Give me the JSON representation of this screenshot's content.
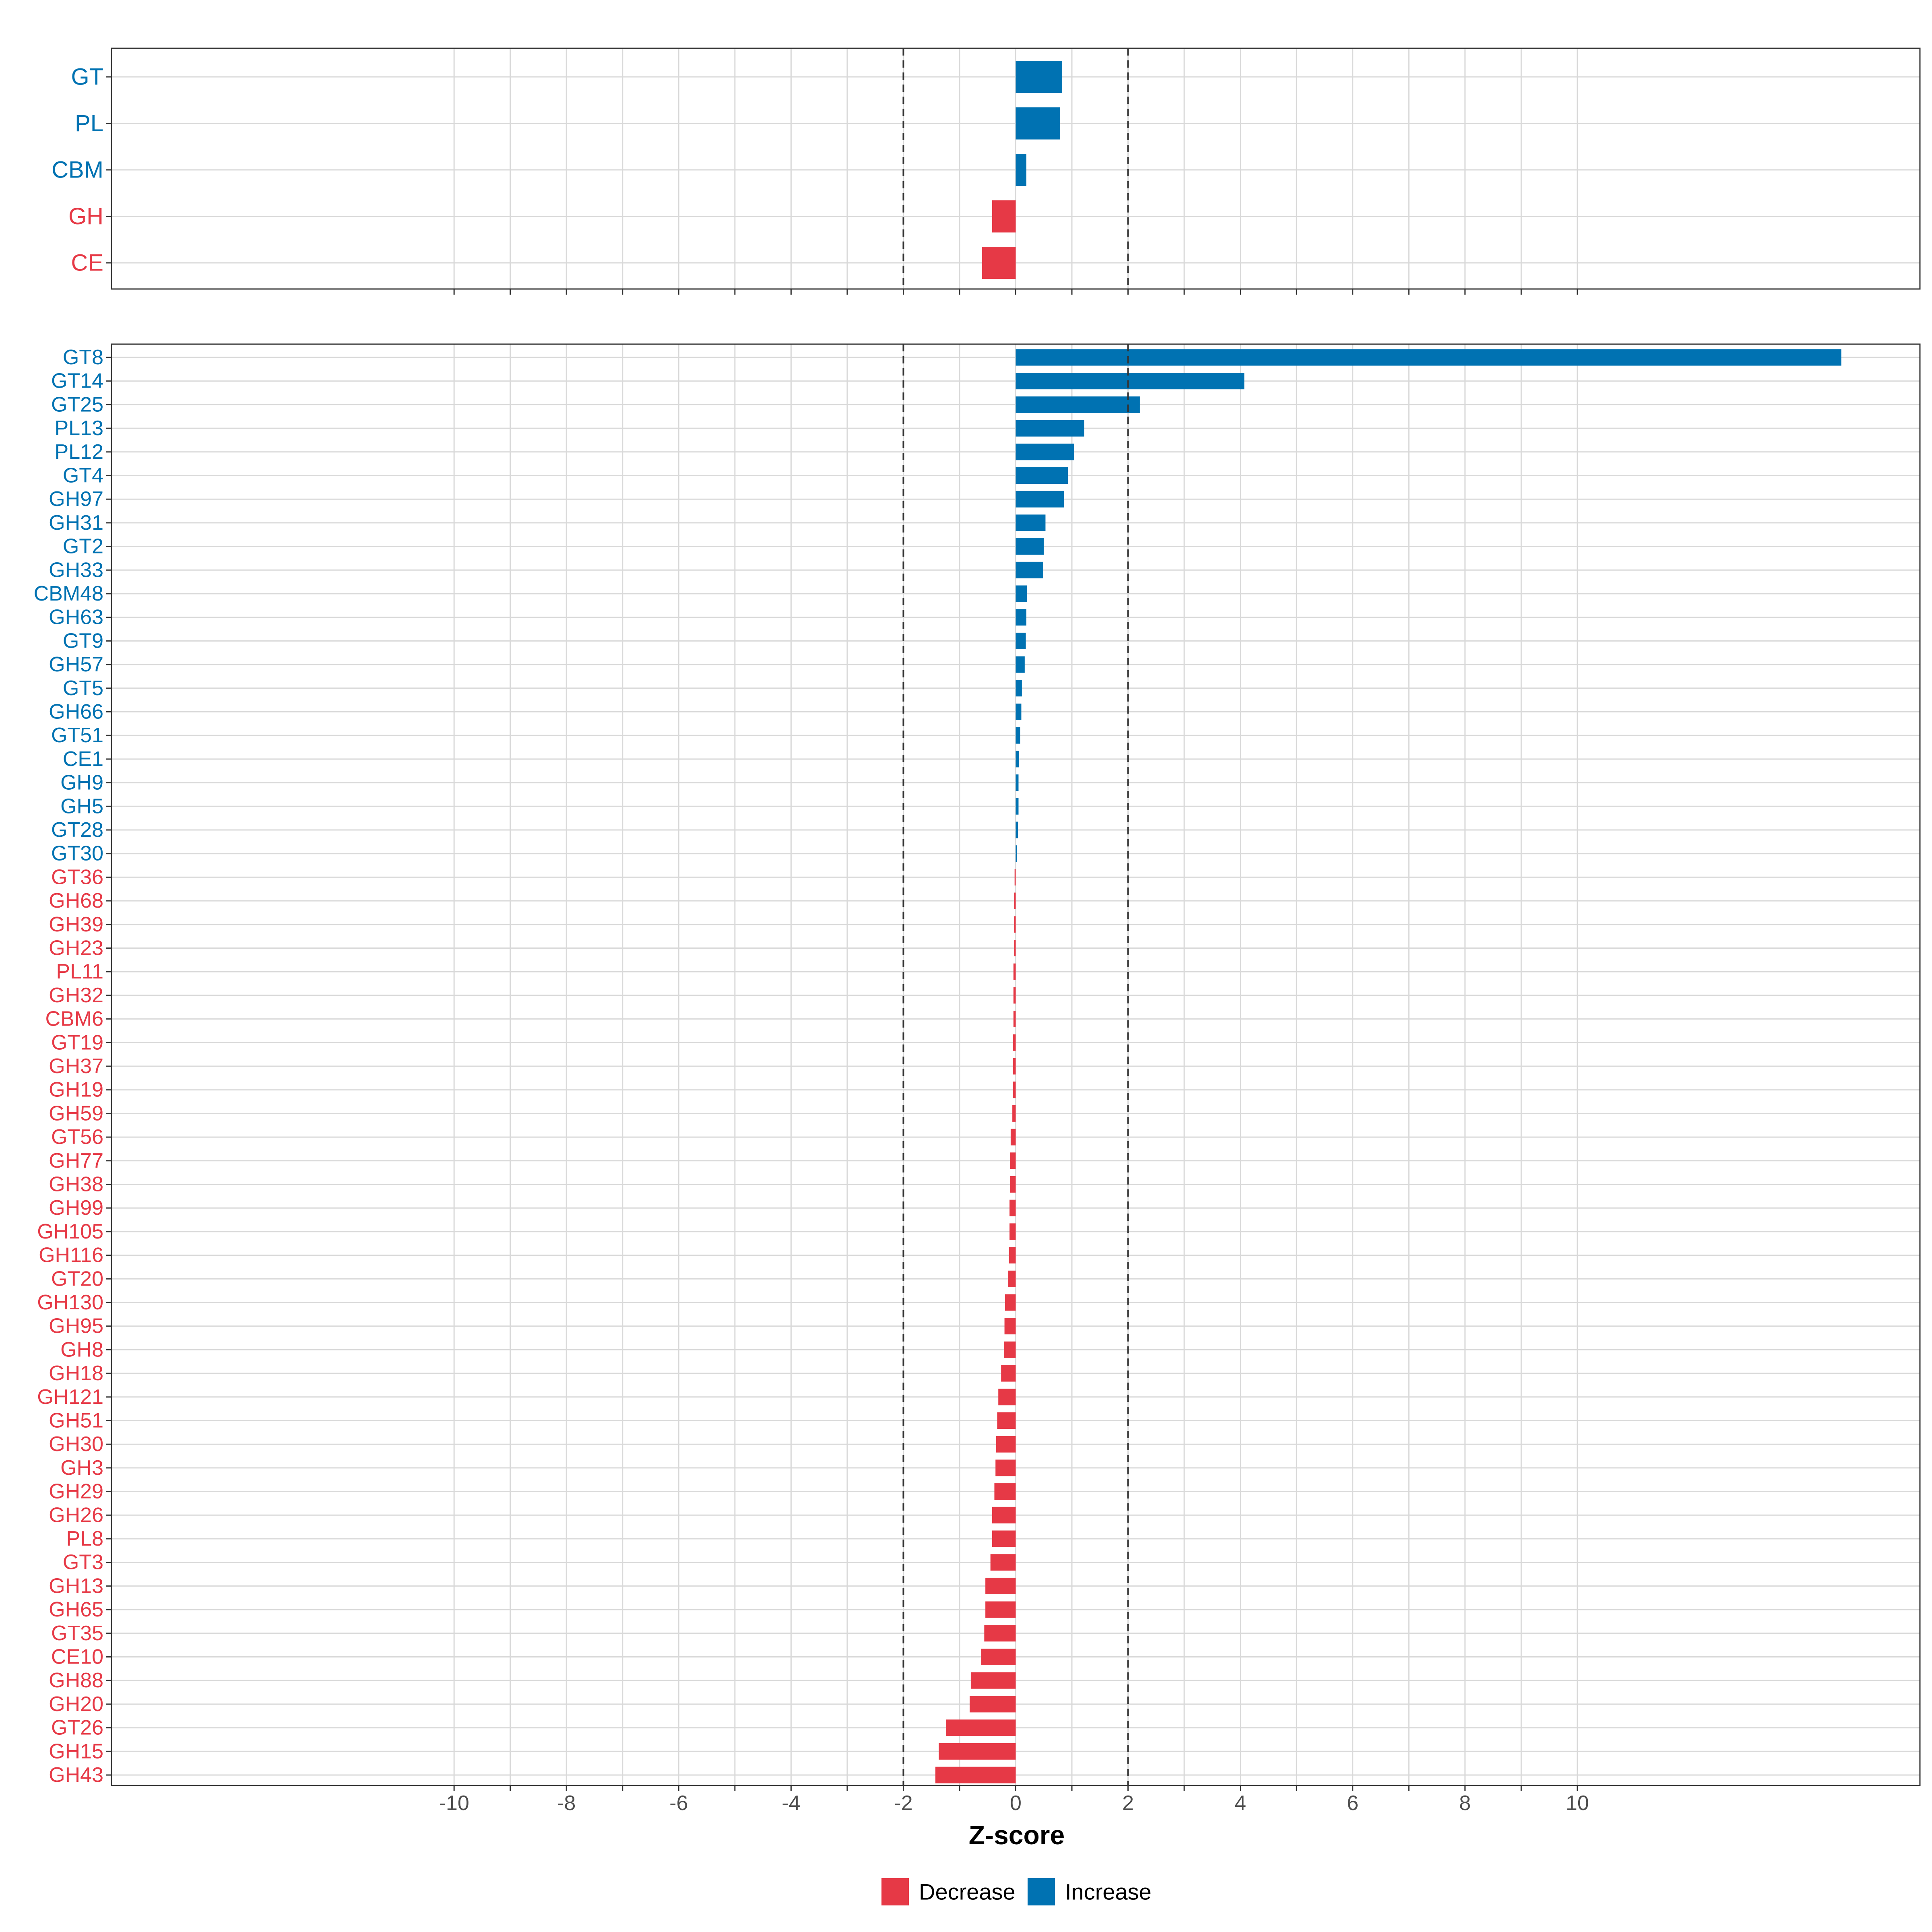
{
  "colors": {
    "decrease": "#E63946",
    "increase": "#0072B2",
    "grid": "#D9D9D9",
    "panel_border": "#333333",
    "threshold": "#333333",
    "axis_text": "#4D4D4D"
  },
  "chart_data": [
    {
      "type": "bar",
      "orientation": "horizontal",
      "panel": "top",
      "categories": [
        "GT",
        "PL",
        "CBM",
        "GH",
        "CE"
      ],
      "values": [
        0.82,
        0.79,
        0.19,
        -0.42,
        -0.6
      ],
      "xlim": [
        -16.1,
        16.1
      ],
      "threshold_lines": [
        -2,
        2
      ],
      "grid": true
    },
    {
      "type": "bar",
      "orientation": "horizontal",
      "panel": "bottom",
      "categories": [
        "GT8",
        "GT14",
        "GT25",
        "PL13",
        "PL12",
        "GT4",
        "GH97",
        "GH31",
        "GT2",
        "GH33",
        "CBM48",
        "GH63",
        "GT9",
        "GH57",
        "GT5",
        "GH66",
        "GT51",
        "CE1",
        "GH9",
        "GH5",
        "GT28",
        "GT30",
        "GT36",
        "GH68",
        "GH39",
        "GH23",
        "PL11",
        "GH32",
        "CBM6",
        "GT19",
        "GH37",
        "GH19",
        "GH59",
        "GT56",
        "GH77",
        "GH38",
        "GH99",
        "GH105",
        "GH116",
        "GT20",
        "GH130",
        "GH95",
        "GH8",
        "GH18",
        "GH121",
        "GH51",
        "GH30",
        "GH3",
        "GH29",
        "GH26",
        "PL8",
        "GT3",
        "GH13",
        "GH65",
        "GT35",
        "CE10",
        "GH88",
        "GH20",
        "GT26",
        "GH15",
        "GH43"
      ],
      "values": [
        14.7,
        4.07,
        2.21,
        1.22,
        1.04,
        0.93,
        0.86,
        0.53,
        0.5,
        0.49,
        0.2,
        0.19,
        0.18,
        0.16,
        0.11,
        0.1,
        0.08,
        0.06,
        0.05,
        0.05,
        0.04,
        0.02,
        -0.02,
        -0.03,
        -0.03,
        -0.03,
        -0.04,
        -0.04,
        -0.04,
        -0.05,
        -0.05,
        -0.05,
        -0.06,
        -0.09,
        -0.1,
        -0.1,
        -0.11,
        -0.11,
        -0.12,
        -0.14,
        -0.19,
        -0.2,
        -0.21,
        -0.26,
        -0.31,
        -0.33,
        -0.35,
        -0.36,
        -0.38,
        -0.42,
        -0.42,
        -0.45,
        -0.54,
        -0.54,
        -0.56,
        -0.62,
        -0.8,
        -0.82,
        -1.24,
        -1.37,
        -1.43
      ],
      "xlim": [
        -16.1,
        16.1
      ],
      "xticks": [
        -10,
        -8,
        -6,
        -4,
        -2,
        0,
        2,
        4,
        6,
        8,
        10
      ],
      "xlabel": "Z-score",
      "threshold_lines": [
        -2,
        2
      ],
      "grid": true
    }
  ],
  "legend": {
    "position": "bottom",
    "items": [
      {
        "label": "Decrease",
        "color": "#E63946"
      },
      {
        "label": "Increase",
        "color": "#0072B2"
      }
    ]
  }
}
